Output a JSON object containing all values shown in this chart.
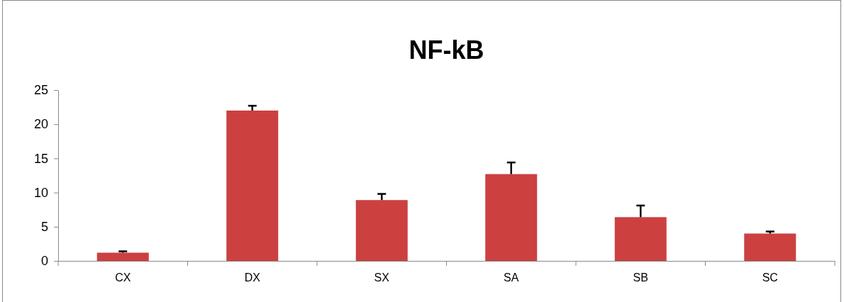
{
  "chart_data": {
    "type": "bar",
    "title": "NF-kB",
    "categories": [
      "CX",
      "DX",
      "SX",
      "SA",
      "SB",
      "SC"
    ],
    "values": [
      1.2,
      22.0,
      8.9,
      12.7,
      6.4,
      4.0
    ],
    "errors": [
      0.2,
      0.7,
      0.9,
      1.7,
      1.7,
      0.3
    ],
    "color": "#cc4040",
    "ylim": [
      0,
      25
    ],
    "yticks": [
      0,
      5,
      10,
      15,
      20,
      25
    ],
    "grid": false
  }
}
